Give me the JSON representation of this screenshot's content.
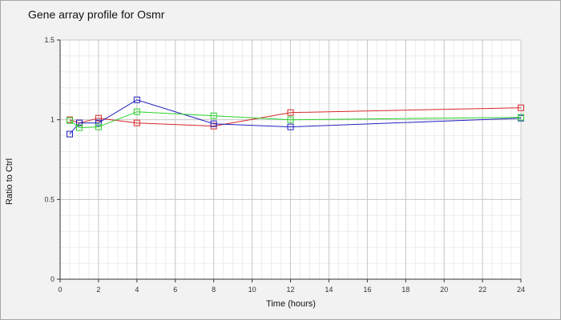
{
  "chart_data": {
    "type": "line",
    "title": "Gene array profile for Osmr",
    "xlabel": "Time (hours)",
    "ylabel": "Ratio to Ctrl",
    "xlim": [
      0,
      24
    ],
    "ylim": [
      0,
      1.5
    ],
    "x_ticks": [
      "0",
      "2",
      "4",
      "6",
      "8",
      "10",
      "12",
      "14",
      "16",
      "18",
      "20",
      "22",
      "24"
    ],
    "y_ticks": [
      "0",
      "0.5",
      "1",
      "1.5"
    ],
    "grid": true,
    "series": [
      {
        "color": "#d62728",
        "x": [
          0.5,
          1,
          2,
          4,
          8,
          12,
          24
        ],
        "y": [
          1.0,
          0.98,
          1.01,
          0.98,
          0.96,
          1.045,
          1.075
        ]
      },
      {
        "color": "#2020c0",
        "x": [
          0.5,
          1,
          2,
          4,
          8,
          12,
          24
        ],
        "y": [
          0.91,
          0.98,
          0.98,
          1.125,
          0.975,
          0.955,
          1.01
        ]
      },
      {
        "color": "#2bd12b",
        "x": [
          0.5,
          1,
          2,
          4,
          8,
          12,
          24
        ],
        "y": [
          0.995,
          0.95,
          0.955,
          1.05,
          1.025,
          1.0,
          1.015
        ]
      }
    ]
  }
}
